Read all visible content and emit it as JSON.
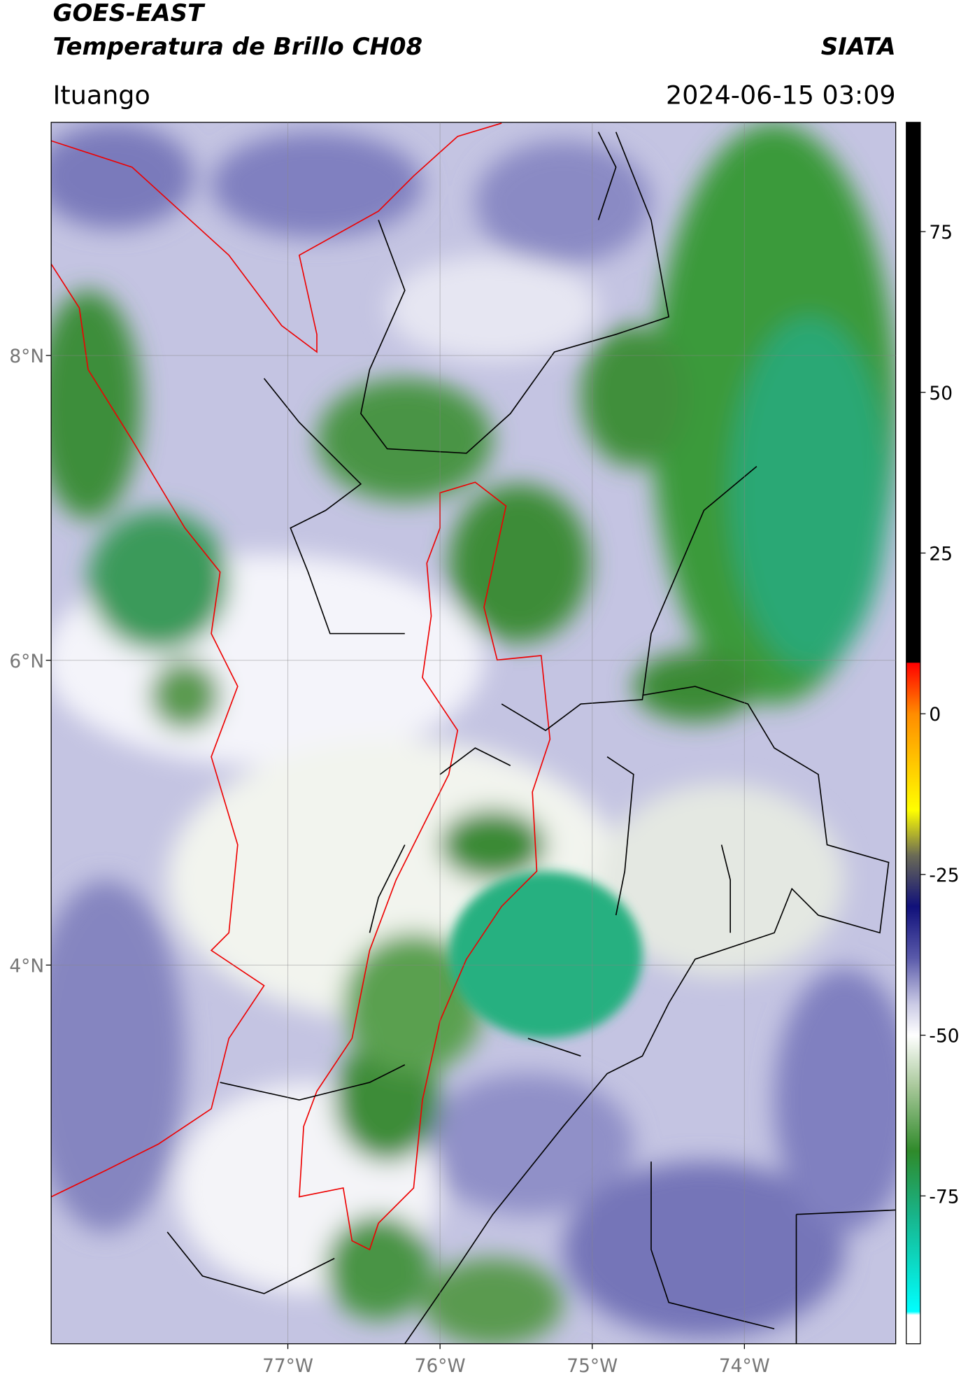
{
  "chart_data": {
    "type": "map",
    "title": "GOES-EAST",
    "subtitle": "Temperatura de Brillo CH08",
    "source": "SIATA",
    "region": "Ituango",
    "datetime": "2024-06-15 03:09",
    "xlim": [
      -78.555,
      -73.006
    ],
    "ylim": [
      1.515,
      9.53
    ],
    "xticks": [
      {
        "value": -77,
        "label": "77°W"
      },
      {
        "value": -76,
        "label": "76°W"
      },
      {
        "value": -75,
        "label": "75°W"
      },
      {
        "value": -74,
        "label": "74°W"
      }
    ],
    "yticks": [
      {
        "value": 8,
        "label": "8°N"
      },
      {
        "value": 6,
        "label": "6°N"
      },
      {
        "value": 4,
        "label": "4°N"
      }
    ],
    "grid": true,
    "colorbar": {
      "lim": [
        -98,
        92
      ],
      "ticks": [
        75,
        50,
        25,
        0,
        -25,
        -50,
        -75
      ],
      "colors": [
        {
          "value": 92,
          "color": "#000000"
        },
        {
          "value": 8,
          "color": "#000000"
        },
        {
          "value": 7.9,
          "color": "#ff0000"
        },
        {
          "value": 0,
          "color": "#ff8c00"
        },
        {
          "value": -15,
          "color": "#ffff00"
        },
        {
          "value": -22,
          "color": "#6b6b55"
        },
        {
          "value": -30,
          "color": "#10107a"
        },
        {
          "value": -38,
          "color": "#5a5aaa"
        },
        {
          "value": -45,
          "color": "#c8c8e4"
        },
        {
          "value": -50,
          "color": "#ffffff"
        },
        {
          "value": -58,
          "color": "#a8c89a"
        },
        {
          "value": -68,
          "color": "#2f8a2a"
        },
        {
          "value": -78,
          "color": "#18b48a"
        },
        {
          "value": -93,
          "color": "#00ffff"
        },
        {
          "value": -93.5,
          "color": "#ffffff"
        },
        {
          "value": -98,
          "color": "#ffffff"
        }
      ]
    }
  }
}
